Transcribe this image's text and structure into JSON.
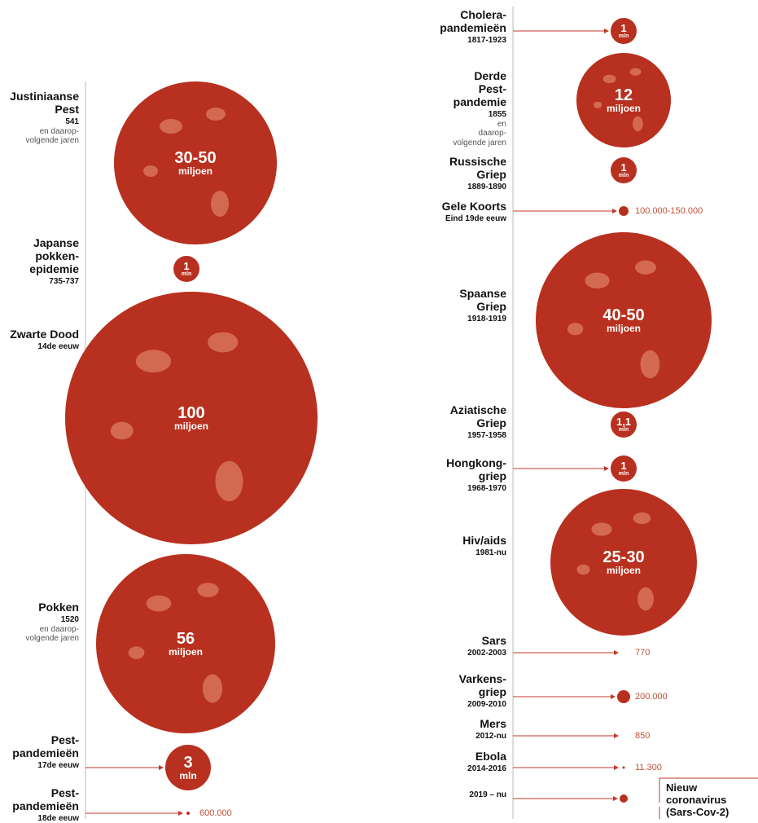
{
  "left": [
    {
      "name": [
        "Justiniaanse",
        "Pest"
      ],
      "period": "541",
      "note": [
        "en daarop-",
        "volgende jaren"
      ],
      "deaths": [
        "30-50",
        "miljoen"
      ]
    },
    {
      "name": [
        "Japanse",
        "pokken-",
        "epidemie"
      ],
      "period": "735-737",
      "deaths": [
        "1",
        "mln"
      ]
    },
    {
      "name": [
        "Zwarte Dood"
      ],
      "period": "14de eeuw",
      "deaths": [
        "100",
        "miljoen"
      ]
    },
    {
      "name": [
        "Pokken"
      ],
      "period": "1520",
      "note": [
        "en daarop-",
        "volgende jaren"
      ],
      "deaths": [
        "56",
        "miljoen"
      ]
    },
    {
      "name": [
        "Pest-",
        "pandemieën"
      ],
      "period": "17de eeuw",
      "deaths": [
        "3",
        "mln"
      ]
    },
    {
      "name": [
        "Pest-",
        "pandemieën"
      ],
      "period": "18de eeuw",
      "deaths": [
        "600.000"
      ]
    }
  ],
  "right": [
    {
      "name": [
        "Cholera-",
        "pandemieën"
      ],
      "period": "1817-1923",
      "deaths": [
        "1",
        "mln"
      ]
    },
    {
      "name": [
        "Derde",
        "Pest-",
        "pandemie"
      ],
      "period": "1855",
      "note": [
        "en",
        "daarop-",
        "volgende jaren"
      ],
      "deaths": [
        "12",
        "miljoen"
      ]
    },
    {
      "name": [
        "Russische",
        "Griep"
      ],
      "period": "1889-1890",
      "deaths": [
        "1",
        "mln"
      ]
    },
    {
      "name": [
        "Gele Koorts"
      ],
      "period": "Eind 19de eeuw",
      "deaths": [
        "100.000-150.000"
      ]
    },
    {
      "name": [
        "Spaanse",
        "Griep"
      ],
      "period": "1918-1919",
      "deaths": [
        "40-50",
        "miljoen"
      ]
    },
    {
      "name": [
        "Aziatische",
        "Griep"
      ],
      "period": "1957-1958",
      "deaths": [
        "1,1",
        "mln"
      ]
    },
    {
      "name": [
        "Hongkong-",
        "griep"
      ],
      "period": "1968-1970",
      "deaths": [
        "1",
        "mln"
      ]
    },
    {
      "name": [
        "Hiv/aids"
      ],
      "period": "1981-nu",
      "deaths": [
        "25-30",
        "miljoen"
      ]
    },
    {
      "name": [
        "Sars"
      ],
      "period": "2002-2003",
      "deaths": [
        "770"
      ]
    },
    {
      "name": [
        "Varkens-",
        "griep"
      ],
      "period": "2009-2010",
      "deaths": [
        "200.000"
      ]
    },
    {
      "name": [
        "Mers"
      ],
      "period": "2012-nu",
      "deaths": [
        "850"
      ]
    },
    {
      "name": [
        "Ebola"
      ],
      "period": "2014-2016",
      "deaths": [
        "11.300"
      ]
    },
    {
      "period": "2019 – nu",
      "callout": [
        "Nieuw",
        "coronavirus",
        "(Sars-Cov-2)"
      ]
    }
  ]
}
